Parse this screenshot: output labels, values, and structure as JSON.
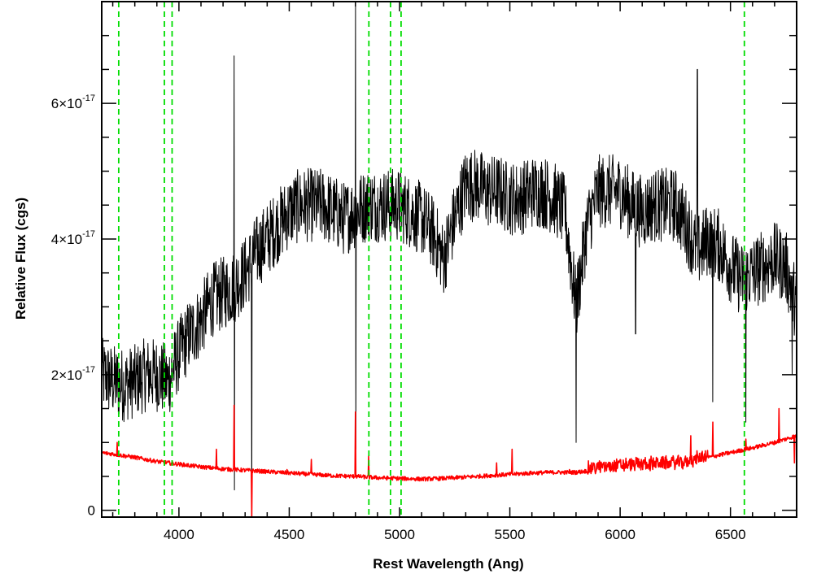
{
  "chart_data": {
    "type": "line",
    "title": "",
    "xlabel": "Rest Wavelength (Ang)",
    "ylabel": "Relative Flux (cgs)",
    "xlim": [
      3650,
      6800
    ],
    "ylim": [
      -1e-18,
      7.5e-17
    ],
    "x_ticks": [
      {
        "value": 4000,
        "label": "4000"
      },
      {
        "value": 4500,
        "label": "4500"
      },
      {
        "value": 5000,
        "label": "5000"
      },
      {
        "value": 5500,
        "label": "5500"
      },
      {
        "value": 6000,
        "label": "6000"
      },
      {
        "value": 6500,
        "label": "6500"
      }
    ],
    "y_ticks": [
      {
        "value": 0,
        "label": "0",
        "mantissa": "0",
        "exponent": ""
      },
      {
        "value": 2e-17,
        "label": "2×10-17",
        "mantissa": "2×10",
        "exponent": "-17"
      },
      {
        "value": 4e-17,
        "label": "4×10-17",
        "mantissa": "4×10",
        "exponent": "-17"
      },
      {
        "value": 6e-17,
        "label": "6×10-17",
        "mantissa": "6×10",
        "exponent": "-17"
      }
    ],
    "grid": false,
    "legend": "none",
    "reference_lines": {
      "color": "#00dd00",
      "style": "dashed",
      "x": [
        3727,
        3934,
        3969,
        4861,
        4959,
        5007,
        6563
      ]
    },
    "series": [
      {
        "color": "#000000",
        "x": [
          3650,
          3700,
          3750,
          3800,
          3850,
          3900,
          3950,
          4000,
          4050,
          4100,
          4150,
          4200,
          4250,
          4300,
          4350,
          4400,
          4450,
          4500,
          4550,
          4600,
          4650,
          4700,
          4750,
          4800,
          4850,
          4900,
          4950,
          5000,
          5050,
          5100,
          5150,
          5200,
          5250,
          5300,
          5350,
          5400,
          5450,
          5500,
          5550,
          5600,
          5650,
          5700,
          5750,
          5800,
          5850,
          5900,
          5950,
          6000,
          6050,
          6100,
          6150,
          6200,
          6250,
          6300,
          6350,
          6400,
          6450,
          6500,
          6550,
          6600,
          6650,
          6700,
          6750,
          6800
        ],
        "y": [
          2e-17,
          1.9e-17,
          1.85e-17,
          1.9e-17,
          2e-17,
          2e-17,
          1.9e-17,
          2.3e-17,
          2.6e-17,
          2.8e-17,
          3.1e-17,
          3.2e-17,
          3.3e-17,
          3.5e-17,
          3.8e-17,
          4e-17,
          4.2e-17,
          4.4e-17,
          4.5e-17,
          4.5e-17,
          4.5e-17,
          4.4e-17,
          4.3e-17,
          4.4e-17,
          4.5e-17,
          4.5e-17,
          4.5e-17,
          4.5e-17,
          4.4e-17,
          4.3e-17,
          4.1e-17,
          3.7e-17,
          4.3e-17,
          4.8e-17,
          4.8e-17,
          4.7e-17,
          4.7e-17,
          4.6e-17,
          4.6e-17,
          4.7e-17,
          4.7e-17,
          4.6e-17,
          4.4e-17,
          3e-17,
          4.2e-17,
          4.7e-17,
          4.7e-17,
          4.7e-17,
          4.5e-17,
          4.4e-17,
          4.5e-17,
          4.5e-17,
          4.5e-17,
          4.2e-17,
          3.8e-17,
          4e-17,
          3.9e-17,
          3.6e-17,
          3.4e-17,
          3.5e-17,
          3.6e-17,
          3.7e-17,
          3.6e-17,
          3e-17
        ],
        "spikes": [
          {
            "x": 4250,
            "y": 6.7e-17
          },
          {
            "x": 4252,
            "y": 3e-18
          },
          {
            "x": 4330,
            "y": -1e-18
          },
          {
            "x": 4800,
            "y": 7.5e-17
          },
          {
            "x": 4802,
            "y": 9e-18
          },
          {
            "x": 5800,
            "y": 1e-17
          },
          {
            "x": 6070,
            "y": 2.6e-17
          },
          {
            "x": 6350,
            "y": 6.5e-17
          },
          {
            "x": 6420,
            "y": 1.6e-17
          },
          {
            "x": 6570,
            "y": 1.3e-17
          },
          {
            "x": 6780,
            "y": 2e-17
          }
        ]
      },
      {
        "color": "#ff0000",
        "x": [
          3650,
          3700,
          3800,
          3900,
          4000,
          4100,
          4200,
          4300,
          4400,
          4500,
          4600,
          4700,
          4800,
          4900,
          5000,
          5100,
          5200,
          5300,
          5400,
          5500,
          5600,
          5700,
          5800,
          5900,
          6000,
          6100,
          6200,
          6300,
          6400,
          6500,
          6600,
          6700,
          6800
        ],
        "y": [
          8.5e-18,
          8.3e-18,
          7.8e-18,
          7.2e-18,
          6.8e-18,
          6.4e-18,
          6.1e-18,
          5.9e-18,
          5.7e-18,
          5.5e-18,
          5.3e-18,
          5.1e-18,
          5e-18,
          4.8e-18,
          4.7e-18,
          4.6e-18,
          4.7e-18,
          4.9e-18,
          5.1e-18,
          5.3e-18,
          5.5e-18,
          5.6e-18,
          5.6e-18,
          6e-18,
          6.3e-18,
          6.5e-18,
          6.6e-18,
          6.8e-18,
          7.8e-18,
          8.5e-18,
          9.2e-18,
          1e-17,
          1.1e-17
        ],
        "spikes": [
          {
            "x": 3720,
            "y": 1e-17
          },
          {
            "x": 4170,
            "y": 9e-18
          },
          {
            "x": 4250,
            "y": 1.55e-17
          },
          {
            "x": 4330,
            "y": -1e-18
          },
          {
            "x": 4490,
            "y": 6e-18
          },
          {
            "x": 4600,
            "y": 7.5e-18
          },
          {
            "x": 4800,
            "y": 1.45e-17
          },
          {
            "x": 4860,
            "y": 8e-18
          },
          {
            "x": 5440,
            "y": 7e-18
          },
          {
            "x": 5510,
            "y": 9e-18
          },
          {
            "x": 5770,
            "y": 6e-18
          },
          {
            "x": 6320,
            "y": 1.1e-17
          },
          {
            "x": 6420,
            "y": 1.3e-17
          },
          {
            "x": 6570,
            "y": 1.05e-17
          },
          {
            "x": 6720,
            "y": 1.5e-17
          },
          {
            "x": 6790,
            "y": 7e-18
          }
        ]
      }
    ]
  }
}
